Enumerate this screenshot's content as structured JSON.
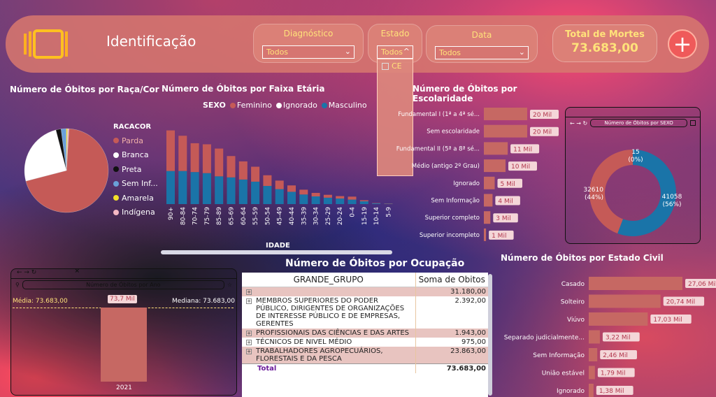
{
  "header": {
    "title": "Identificação",
    "filters": [
      {
        "label": "Diagnóstico",
        "value": "Todos"
      },
      {
        "label": "Estado",
        "value": "Todos"
      },
      {
        "label": "Data",
        "value": "Todos"
      }
    ],
    "estado_option": "CE",
    "kpi_label": "Total de Mortes",
    "kpi_value": "73.683,00"
  },
  "raca": {
    "title": "Número de Óbitos por Raça/Cor",
    "legend_title": "RACACOR",
    "items": [
      {
        "label": "Parda",
        "color": "#c55a57"
      },
      {
        "label": "Branca",
        "color": "#ffffff"
      },
      {
        "label": "Preta",
        "color": "#111111"
      },
      {
        "label": "Sem Inf...",
        "color": "#6aa0d8"
      },
      {
        "label": "Amarela",
        "color": "#f2e02a"
      },
      {
        "label": "Indígena",
        "color": "#f4b8c4"
      }
    ]
  },
  "faixa": {
    "title": "Número de Óbitos por Faixa Etária",
    "legend_title": "SEXO",
    "legend": [
      {
        "label": "Feminino",
        "color": "#c55a57"
      },
      {
        "label": "Ignorado",
        "color": "#ffffff"
      },
      {
        "label": "Masculino",
        "color": "#1a74a8"
      }
    ],
    "axis_label": "IDADE"
  },
  "escolaridade": {
    "title": "Número de Óbitos por Escolaridade",
    "rows": [
      {
        "label": "Fundamental I (1ª a 4ª sé...",
        "value": "20 Mil"
      },
      {
        "label": "Sem escolaridade",
        "value": "20 Mil"
      },
      {
        "label": "Fundamental II (5ª a 8ª sé...",
        "value": "11 Mil"
      },
      {
        "label": "Médio (antigo 2º Grau)",
        "value": "10 Mil"
      },
      {
        "label": "Ignorado",
        "value": "5 Mil"
      },
      {
        "label": "Sem Informação",
        "value": "4 Mil"
      },
      {
        "label": "Superior completo",
        "value": "3 Mil"
      },
      {
        "label": "Superior incompleto",
        "value": "1 Mil"
      }
    ]
  },
  "sexo": {
    "title": "Número de Óbitos por SEXO",
    "labels": [
      {
        "value": "15",
        "pct": "(0%)"
      },
      {
        "value": "32610",
        "pct": "(44%)"
      },
      {
        "value": "41058",
        "pct": "(56%)"
      }
    ]
  },
  "ano": {
    "title": "Número de Óbitos por Ano",
    "media": "Média: 73.683,00",
    "mediana": "Mediana: 73.683,00",
    "bar_label": "73,7 Mil",
    "category": "2021"
  },
  "ocupacao": {
    "title": "Número de Óbitos por Ocupação",
    "col1": "GRANDE_GRUPO",
    "col2": "Soma de Obitos",
    "rows": [
      {
        "name": "",
        "value": "31.180,00"
      },
      {
        "name": "MEMBROS SUPERIORES DO PODER PÚBLICO, DIRIGENTES DE ORGANIZAÇÕES DE INTERESSE PÚBLICO E DE EMPRESAS, GERENTES",
        "value": "2.392,00"
      },
      {
        "name": "PROFISSIONAIS DAS CIÊNCIAS E DAS ARTES",
        "value": "1.943,00"
      },
      {
        "name": "TÉCNICOS DE NIVEL MÉDIO",
        "value": "975,00"
      },
      {
        "name": "TRABALHADORES AGROPECUÁRIOS, FLORESTAIS E DA PESCA",
        "value": "23.863,00"
      }
    ],
    "total_label": "Total",
    "total_value": "73.683,00"
  },
  "civil": {
    "title": "Número de Óbitos por Estado Civil",
    "rows": [
      {
        "label": "Casado",
        "value": "27,06 Mil"
      },
      {
        "label": "Solteiro",
        "value": "20,74 Mil"
      },
      {
        "label": "Viúvo",
        "value": "17,03 Mil"
      },
      {
        "label": "Separado judicialmente...",
        "value": "3,22 Mil"
      },
      {
        "label": "Sem Informação",
        "value": "2,46 Mil"
      },
      {
        "label": "União estável",
        "value": "1,79 Mil"
      },
      {
        "label": "Ignorado",
        "value": "1,38 Mil"
      }
    ]
  },
  "chart_data": [
    {
      "type": "pie",
      "title": "Número de Óbitos por Raça/Cor",
      "categories": [
        "Parda",
        "Branca",
        "Preta",
        "Sem Inf...",
        "Amarela",
        "Indígena"
      ],
      "values": [
        70,
        25,
        2,
        2,
        0.5,
        0.5
      ]
    },
    {
      "type": "bar",
      "title": "Número de Óbitos por Faixa Etária",
      "xlabel": "IDADE",
      "categories": [
        "90+",
        "80-84",
        "70-74",
        "75-79",
        "85-89",
        "65-69",
        "60-64",
        "55-59",
        "50-54",
        "45-49",
        "40-44",
        "35-39",
        "30-34",
        "25-29",
        "20-24",
        "0-4",
        "15-19",
        "10-14",
        "5-9"
      ],
      "series": [
        {
          "name": "Masculino",
          "values": [
            3100,
            3100,
            3000,
            2900,
            2600,
            2500,
            2300,
            2100,
            1700,
            1400,
            1150,
            900,
            720,
            600,
            520,
            420,
            260,
            70,
            30
          ]
        },
        {
          "name": "Feminino",
          "values": [
            3800,
            3300,
            2700,
            2700,
            2600,
            2000,
            1700,
            1400,
            1000,
            800,
            600,
            450,
            330,
            270,
            230,
            280,
            100,
            30,
            30
          ]
        },
        {
          "name": "Ignorado",
          "values": [
            0,
            0,
            0,
            0,
            0,
            0,
            0,
            0,
            0,
            0,
            0,
            0,
            0,
            0,
            0,
            0,
            0,
            0,
            0
          ]
        }
      ]
    },
    {
      "type": "bar",
      "title": "Número de Óbitos por Escolaridade",
      "categories": [
        "Fundamental I (1ª a 4ª sé...",
        "Sem escolaridade",
        "Fundamental II (5ª a 8ª sé...",
        "Médio (antigo 2º Grau)",
        "Ignorado",
        "Sem Informação",
        "Superior completo",
        "Superior incompleto"
      ],
      "values": [
        20000,
        20000,
        11000,
        10000,
        5000,
        4000,
        3000,
        1000
      ]
    },
    {
      "type": "pie",
      "title": "Número de Óbitos por SEXO",
      "categories": [
        "Ignorado",
        "Feminino",
        "Masculino"
      ],
      "values": [
        15,
        32610,
        41058
      ]
    },
    {
      "type": "bar",
      "title": "Número de Óbitos por Ano",
      "categories": [
        "2021"
      ],
      "values": [
        73683
      ]
    },
    {
      "type": "bar",
      "title": "Número de Óbitos por Estado Civil",
      "categories": [
        "Casado",
        "Solteiro",
        "Viúvo",
        "Separado judicialmente...",
        "Sem Informação",
        "União estável",
        "Ignorado"
      ],
      "values": [
        27060,
        20740,
        17030,
        3220,
        2460,
        1790,
        1380
      ]
    }
  ]
}
